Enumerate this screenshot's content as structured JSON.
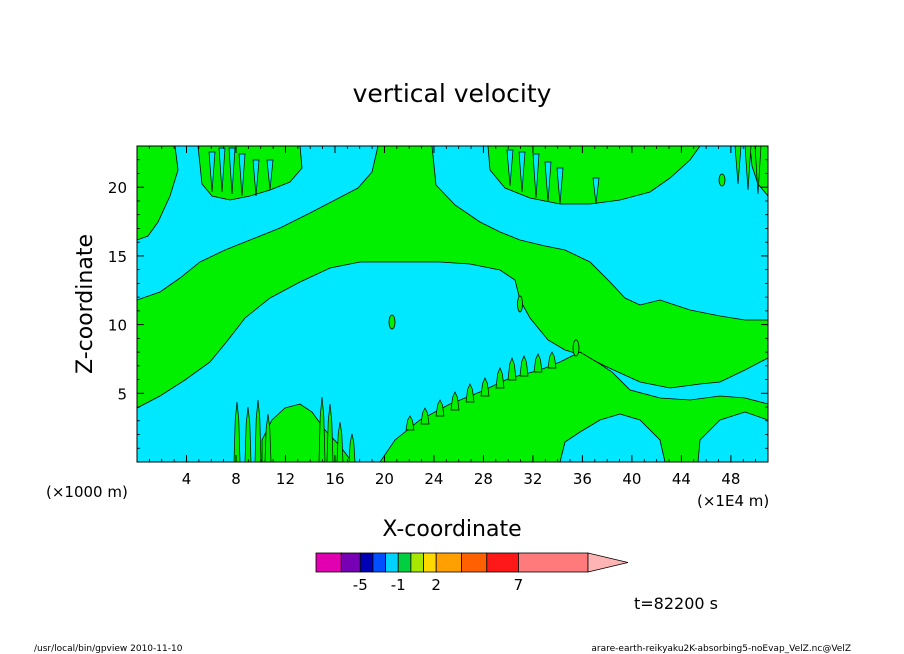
{
  "chart_data": {
    "type": "heatmap",
    "subtype": "filled-contour",
    "title": "vertical velocity",
    "xlabel": "X-coordinate",
    "ylabel": "Z-coordinate",
    "x_units_label": "(×1E4 m)",
    "y_units_label": "(×1000 m)",
    "xlim": [
      0,
      51
    ],
    "ylim": [
      0,
      23
    ],
    "x_ticks": [
      4,
      8,
      12,
      16,
      20,
      24,
      28,
      32,
      36,
      40,
      44,
      48
    ],
    "x_tick_labels": [
      "4",
      "8",
      "12",
      "16",
      "20",
      "24",
      "28",
      "32",
      "36",
      "40",
      "44",
      "48"
    ],
    "y_ticks": [
      5,
      10,
      15,
      20
    ],
    "y_tick_labels": [
      "5",
      "10",
      "15",
      "20"
    ],
    "grid": false,
    "colorbar": {
      "colors": [
        "#e000b0",
        "#7800b4",
        "#0000b4",
        "#0050ff",
        "#00d2ff",
        "#00d040",
        "#a8e800",
        "#ffd800",
        "#ffa000",
        "#ff6000",
        "#ff1818",
        "#ff7a7a",
        "#ffb4b4"
      ],
      "weights": [
        2,
        1.5,
        1,
        1,
        1,
        1,
        1,
        1,
        2,
        2,
        2.5,
        5.5,
        3
      ],
      "labels": [
        {
          "text": "-5",
          "index": 2
        },
        {
          "text": "-1",
          "index": 5
        },
        {
          "text": "2",
          "index": 8
        },
        {
          "text": "7",
          "index": 11
        }
      ]
    },
    "time_label": "t=82200 s",
    "fill_colors": {
      "background": "#00e8ff",
      "band": "#00f000"
    }
  },
  "footer": {
    "left": "/usr/local/bin/gpview  2010-11-10",
    "right": "arare-earth-reikyaku2K-absorbing5-noEvap_VelZ.nc@VelZ"
  }
}
